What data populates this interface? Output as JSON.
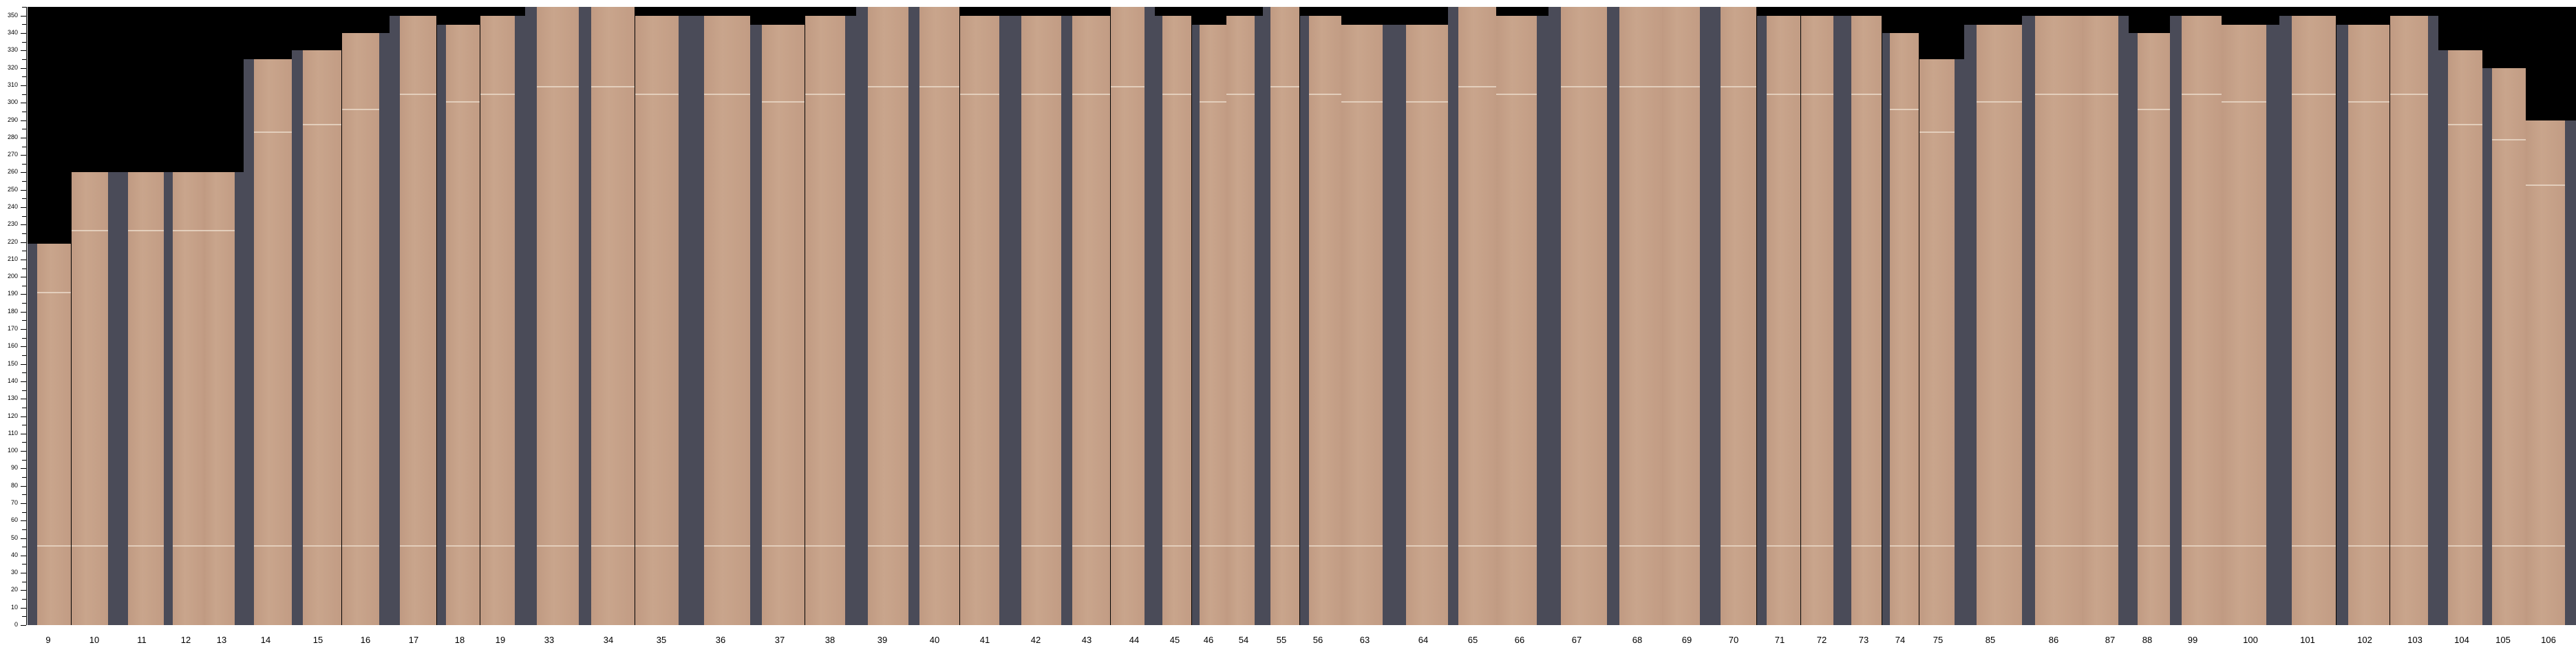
{
  "chart_data": {
    "type": "bar",
    "categories": [
      "9",
      "10",
      "11",
      "12",
      "13",
      "14",
      "15",
      "16",
      "17",
      "18",
      "19",
      "33",
      "34",
      "35",
      "36",
      "37",
      "38",
      "39",
      "40",
      "41",
      "42",
      "43",
      "44",
      "45",
      "46",
      "54",
      "55",
      "56",
      "63",
      "64",
      "65",
      "66",
      "67",
      "68",
      "69",
      "70",
      "71",
      "72",
      "73",
      "74",
      "75",
      "85",
      "86",
      "87",
      "88",
      "99",
      "100",
      "101",
      "102",
      "103",
      "104",
      "105",
      "106"
    ],
    "values": [
      219,
      260,
      260,
      260,
      260,
      325,
      330,
      340,
      350,
      345,
      350,
      355,
      355,
      350,
      350,
      345,
      350,
      355,
      355,
      350,
      350,
      350,
      355,
      350,
      345,
      350,
      355,
      350,
      345,
      345,
      355,
      350,
      355,
      355,
      355,
      355,
      350,
      350,
      350,
      340,
      325,
      345,
      350,
      350,
      340,
      350,
      345,
      350,
      345,
      350,
      330,
      320,
      290
    ],
    "ylim": [
      0,
      355
    ],
    "y_ticks": [
      "0",
      "10",
      "20",
      "30",
      "40",
      "50",
      "60",
      "70",
      "80",
      "90",
      "100",
      "110",
      "120",
      "130",
      "140",
      "150",
      "160",
      "170",
      "180",
      "190",
      "200",
      "210",
      "220",
      "230",
      "240",
      "250",
      "260",
      "270",
      "280",
      "290",
      "300",
      "310",
      "320",
      "330",
      "340",
      "350"
    ],
    "grid": false,
    "colors": {
      "sheet": "#c4a088",
      "gap": "#4a4b58",
      "background": "#000000"
    }
  }
}
